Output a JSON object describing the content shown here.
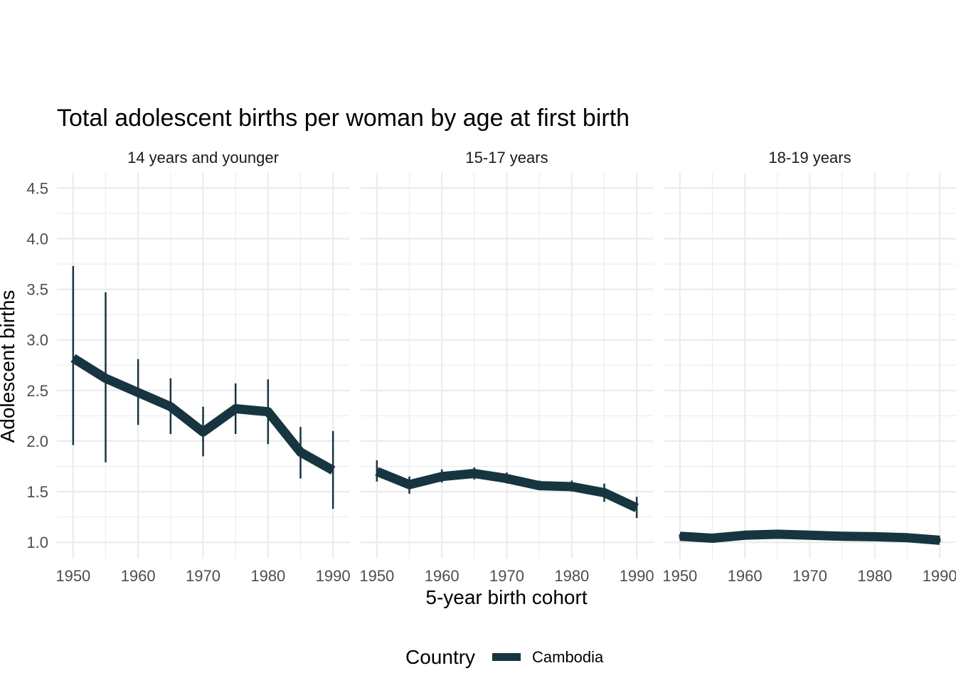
{
  "chart_data": {
    "type": "line",
    "title": "Total adolescent births per woman by age at first birth",
    "xlabel": "5-year birth cohort",
    "ylabel": "Adolescent births",
    "ylim": [
      0.84,
      4.65
    ],
    "xlim": [
      1947.5,
      1992.5
    ],
    "y_ticks": [
      1.0,
      1.5,
      2.0,
      2.5,
      3.0,
      3.5,
      4.0,
      4.5
    ],
    "y_tick_labels": [
      "1.0",
      "1.5",
      "2.0",
      "2.5",
      "3.0",
      "3.5",
      "4.0",
      "4.5"
    ],
    "x_ticks": [
      1950,
      1960,
      1970,
      1980,
      1990
    ],
    "x_tick_labels": [
      "1950",
      "1960",
      "1970",
      "1980",
      "1990"
    ],
    "x": [
      1950,
      1955,
      1960,
      1965,
      1970,
      1975,
      1980,
      1985,
      1990
    ],
    "legend": {
      "title": "Country",
      "entries": [
        "Cambodia"
      ],
      "position": "bottom"
    },
    "color": "#163540",
    "panels": [
      {
        "label": "14 years and younger",
        "series": [
          {
            "name": "Cambodia",
            "values": [
              2.82,
              2.62,
              2.48,
              2.34,
              2.09,
              2.32,
              2.29,
              1.89,
              1.71
            ],
            "lower": [
              1.96,
              1.79,
              2.16,
              2.07,
              1.85,
              2.07,
              1.97,
              1.63,
              1.33
            ],
            "upper": [
              3.73,
              3.47,
              2.81,
              2.62,
              2.34,
              2.57,
              2.61,
              2.14,
              2.1
            ]
          }
        ]
      },
      {
        "label": "15-17 years",
        "series": [
          {
            "name": "Cambodia",
            "values": [
              1.7,
              1.57,
              1.65,
              1.68,
              1.63,
              1.56,
              1.55,
              1.49,
              1.34
            ],
            "lower": [
              1.6,
              1.48,
              1.59,
              1.62,
              1.58,
              1.52,
              1.5,
              1.4,
              1.24
            ],
            "upper": [
              1.81,
              1.65,
              1.72,
              1.74,
              1.69,
              1.61,
              1.61,
              1.58,
              1.45
            ]
          }
        ]
      },
      {
        "label": "18-19 years",
        "series": [
          {
            "name": "Cambodia",
            "values": [
              1.06,
              1.04,
              1.07,
              1.08,
              1.07,
              1.06,
              1.055,
              1.045,
              1.02
            ],
            "lower": [
              1.04,
              1.02,
              1.05,
              1.06,
              1.05,
              1.04,
              1.035,
              1.025,
              1.0
            ],
            "upper": [
              1.08,
              1.06,
              1.09,
              1.1,
              1.09,
              1.08,
              1.075,
              1.065,
              1.04
            ]
          }
        ]
      }
    ]
  }
}
